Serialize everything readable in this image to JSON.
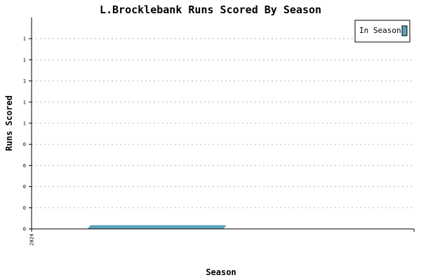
{
  "chart_data": {
    "type": "area",
    "title": "L.Brocklebank Runs Scored By Season",
    "xlabel": "Season",
    "ylabel": "Runs Scored",
    "categories": [
      "2024"
    ],
    "x": [
      "2024"
    ],
    "y_tick_labels": [
      "0",
      "0",
      "0",
      "0",
      "0",
      "1",
      "1",
      "1",
      "1",
      "1"
    ],
    "ylim": [
      0,
      1
    ],
    "grid": true,
    "legend_position": "top-right",
    "series": [
      {
        "name": "In Season",
        "values": [
          0
        ],
        "color": "#5ba4c0"
      }
    ]
  }
}
